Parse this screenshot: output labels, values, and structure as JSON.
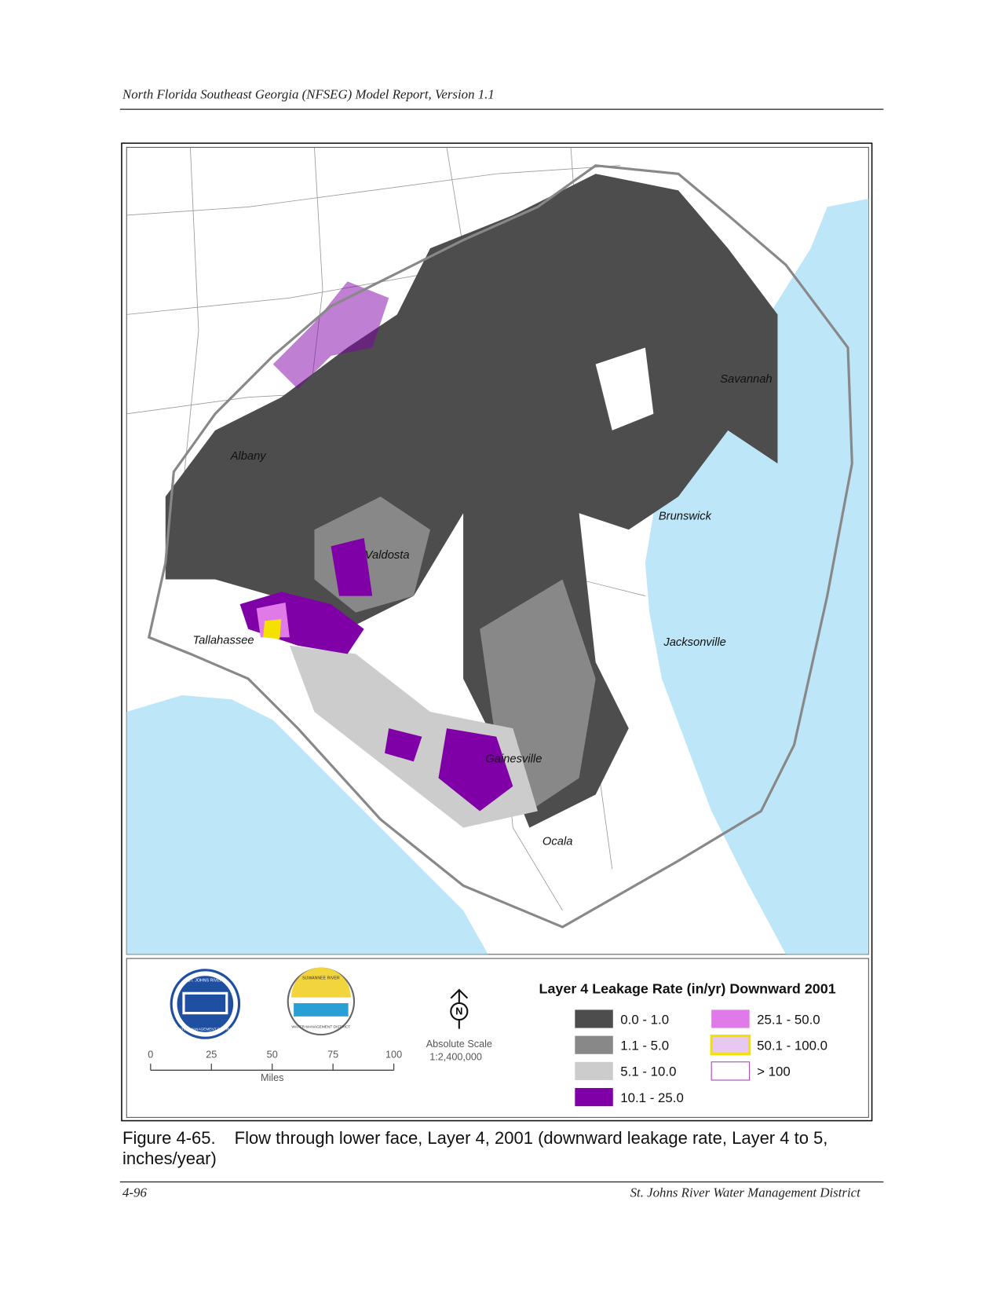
{
  "header": {
    "title": "North Florida Southeast Georgia (NFSEG) Model Report, Version 1.1"
  },
  "figure": {
    "map_labels": [
      "Savannah",
      "Albany",
      "Brunswick",
      "Valdosta",
      "Tallahassee",
      "Jacksonville",
      "Gainesville",
      "Ocala"
    ],
    "logos": [
      {
        "top": "ST. JOHNS RIVER",
        "bottom": "WATER MANAGEMENT DISTRICT"
      },
      {
        "top": "SUWANNEE RIVER",
        "bottom": "WATER MANAGEMENT DISTRICT"
      }
    ],
    "north": "N",
    "scale_bar": {
      "ticks": [
        0,
        25,
        50,
        75,
        100
      ],
      "unit": "Miles"
    },
    "scale_text": "Absolute Scale",
    "scale_ratio": "1:2,400,000",
    "legend": {
      "title": "Layer 4 Leakage Rate (in/yr) Downward 2001",
      "items": [
        "0.0 - 1.0",
        "1.1 - 5.0",
        "5.1 - 10.0",
        "10.1 - 25.0",
        "25.1 - 50.0",
        "50.1 - 100.0",
        "> 100"
      ]
    }
  },
  "caption": {
    "number": "Figure 4-65.",
    "text": "Flow through lower face, Layer 4, 2001 (downward leakage rate, Layer 4 to 5, inches/year)"
  },
  "footer": {
    "page": "4-96",
    "organization": "St. Johns River Water Management District"
  }
}
